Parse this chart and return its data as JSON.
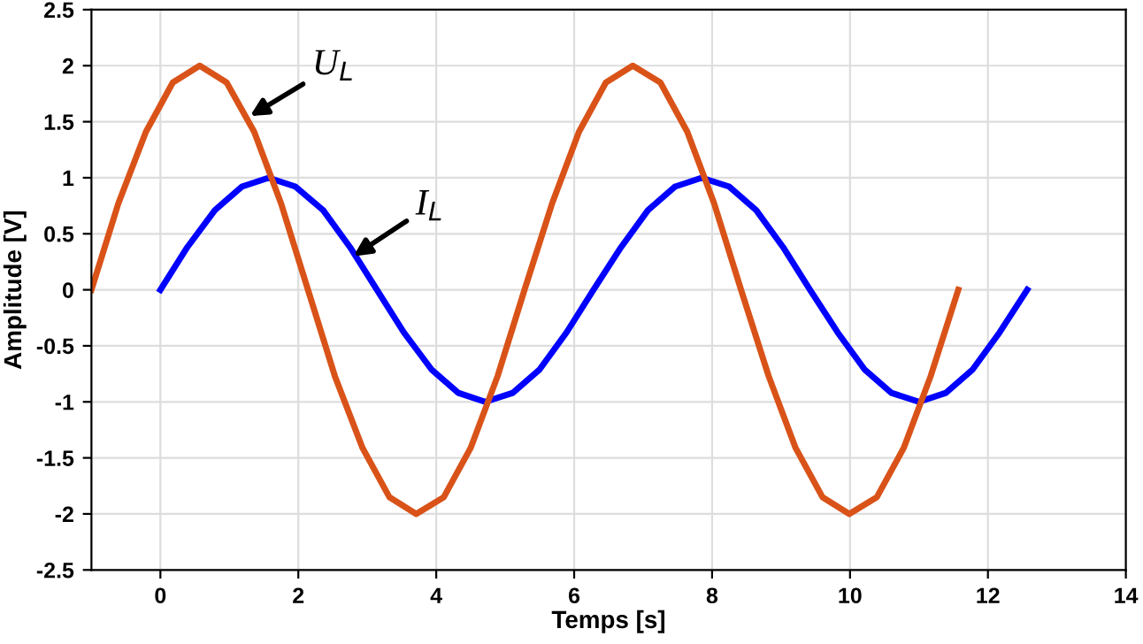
{
  "chart_data": {
    "type": "line",
    "xlabel": "Temps [s]",
    "ylabel": "Amplitude [V]",
    "xlim": [
      -1,
      14
    ],
    "xticks": [
      0,
      2,
      4,
      6,
      8,
      10,
      12,
      14
    ],
    "ylim": [
      -2.5,
      2.5
    ],
    "yticks": [
      -2.5,
      -2,
      -1.5,
      -1,
      -0.5,
      0,
      0.5,
      1,
      1.5,
      2,
      2.5
    ],
    "grid": true,
    "legend": false,
    "marker": "none",
    "line_style": "solid",
    "series": [
      {
        "color": "#0000ff",
        "x": [
          0,
          0.39,
          0.79,
          1.18,
          1.57,
          1.96,
          2.36,
          2.75,
          3.14,
          3.53,
          3.93,
          4.32,
          4.71,
          5.11,
          5.5,
          5.89,
          6.28,
          6.68,
          7.07,
          7.46,
          7.85,
          8.25,
          8.64,
          9.03,
          9.42,
          9.82,
          10.21,
          10.6,
          11.0,
          11.39,
          11.78,
          12.17,
          12.57
        ],
        "values": [
          0,
          0.38,
          0.71,
          0.92,
          1,
          0.92,
          0.71,
          0.38,
          0,
          -0.38,
          -0.71,
          -0.92,
          -1,
          -0.92,
          -0.71,
          -0.38,
          0,
          0.38,
          0.71,
          0.92,
          1,
          0.92,
          0.71,
          0.38,
          0,
          -0.38,
          -0.71,
          -0.92,
          -1,
          -0.92,
          -0.71,
          -0.38,
          0
        ]
      },
      {
        "color": "#d95319",
        "x": [
          -1,
          -0.61,
          -0.21,
          0.18,
          0.57,
          0.96,
          1.36,
          1.75,
          2.14,
          2.53,
          2.93,
          3.32,
          3.71,
          4.11,
          4.5,
          4.89,
          5.28,
          5.68,
          6.07,
          6.46,
          6.85,
          7.25,
          7.64,
          8.03,
          8.42,
          8.82,
          9.21,
          9.6,
          9.99,
          10.39,
          10.78,
          11.17,
          11.57
        ],
        "values": [
          0,
          0.77,
          1.41,
          1.85,
          2,
          1.85,
          1.41,
          0.77,
          0,
          -0.77,
          -1.41,
          -1.85,
          -2,
          -1.85,
          -1.41,
          -0.77,
          0,
          0.77,
          1.41,
          1.85,
          2,
          1.85,
          1.41,
          0.77,
          0,
          -0.77,
          -1.41,
          -1.85,
          -2,
          -1.85,
          -1.41,
          -0.77,
          0
        ]
      }
    ],
    "annotations": [
      {
        "text": "U$_{L}$",
        "x": 1.3,
        "y": 1.55
      },
      {
        "text": "I$_{L}$",
        "x": 2.8,
        "y": 0.3
      }
    ]
  }
}
